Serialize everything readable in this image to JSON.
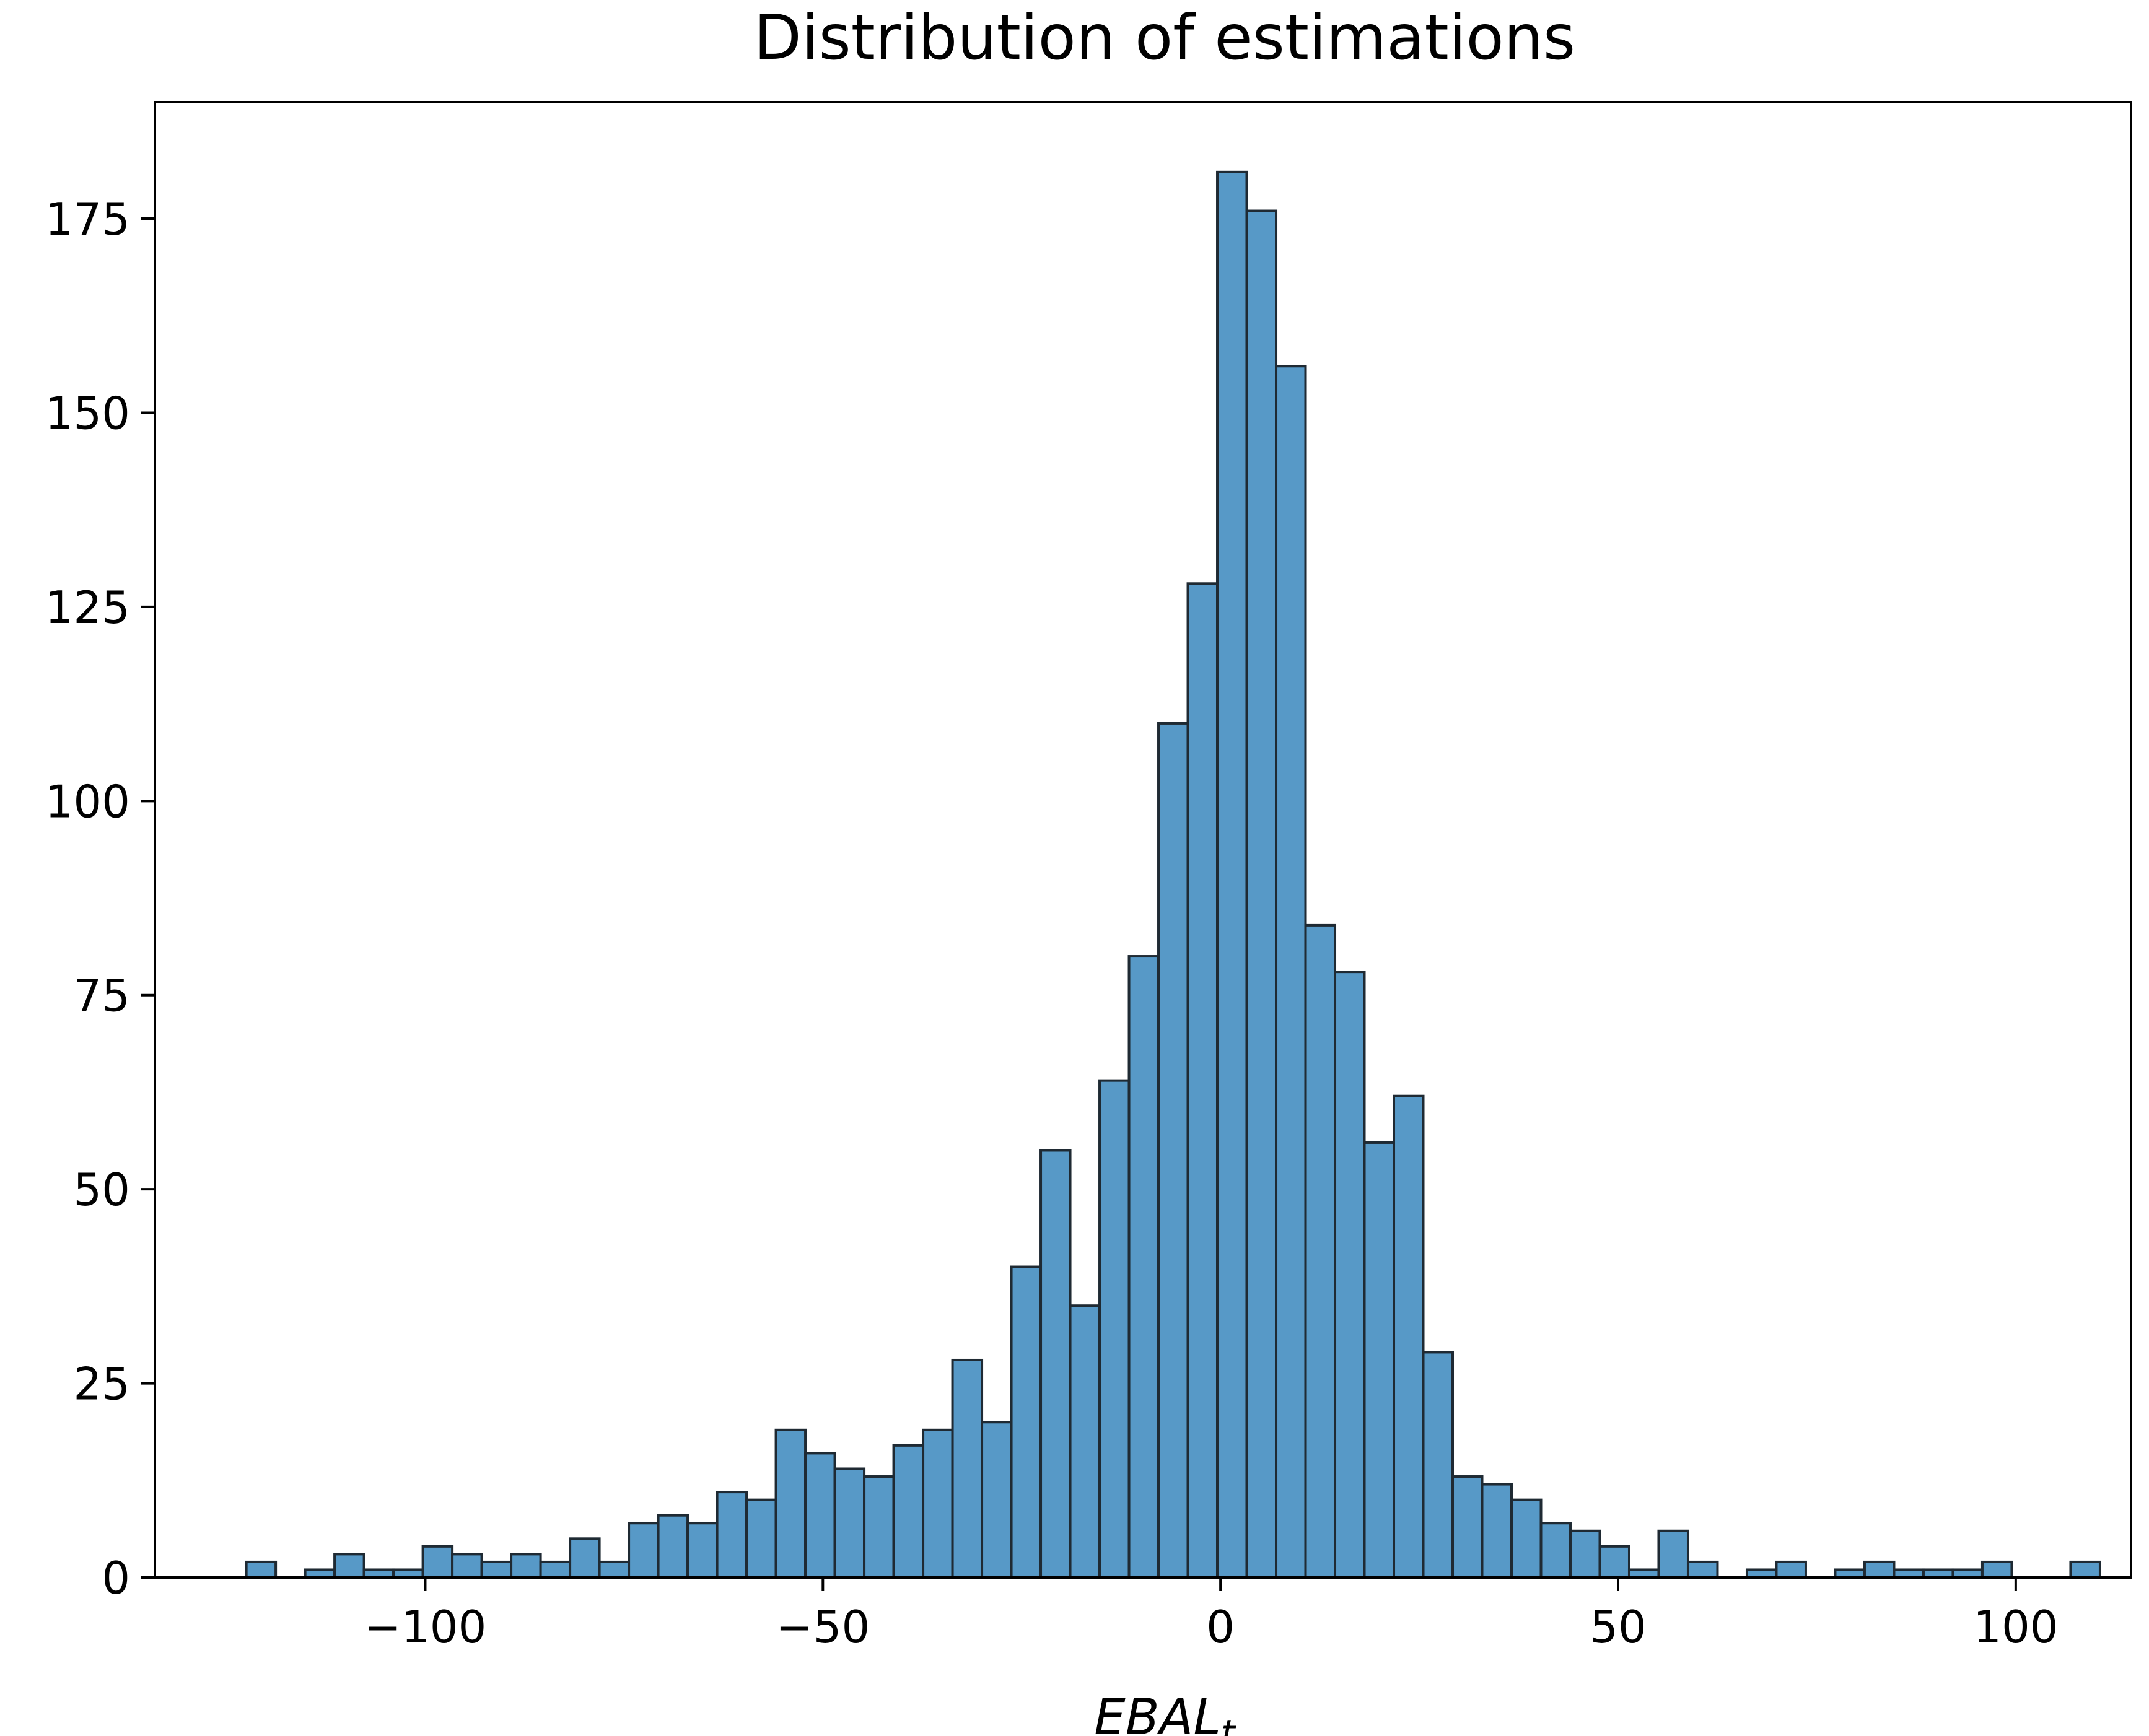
{
  "chart_data": {
    "type": "bar",
    "title": "Distribution of estimations",
    "xlabel": "EBAL",
    "xlabel_subscript": "t",
    "ylabel": "",
    "grid": false,
    "xlim": [
      -134,
      114.5
    ],
    "ylim": [
      0,
      190
    ],
    "x_ticks": [
      -100,
      -50,
      0,
      50,
      100
    ],
    "x_tick_labels": [
      "−100",
      "−50",
      "0",
      "50",
      "100"
    ],
    "y_ticks": [
      0,
      25,
      50,
      75,
      100,
      125,
      150,
      175
    ],
    "y_tick_labels": [
      "0",
      "25",
      "50",
      "75",
      "100",
      "125",
      "150",
      "175"
    ],
    "bin_start": -122.5,
    "bin_width": 3.7,
    "values": [
      2,
      0,
      1,
      3,
      1,
      1,
      4,
      3,
      2,
      3,
      2,
      5,
      2,
      7,
      8,
      7,
      11,
      10,
      19,
      16,
      14,
      13,
      17,
      19,
      28,
      20,
      40,
      55,
      35,
      64,
      80,
      110,
      128,
      181,
      176,
      156,
      84,
      78,
      56,
      62,
      29,
      13,
      12,
      10,
      7,
      6,
      4,
      1,
      6,
      2,
      0,
      1,
      2,
      0,
      1,
      2,
      1,
      1,
      1,
      2,
      0,
      0,
      2
    ],
    "colors": {
      "bar": "#5799c7",
      "edge": "#1f2a33"
    }
  }
}
